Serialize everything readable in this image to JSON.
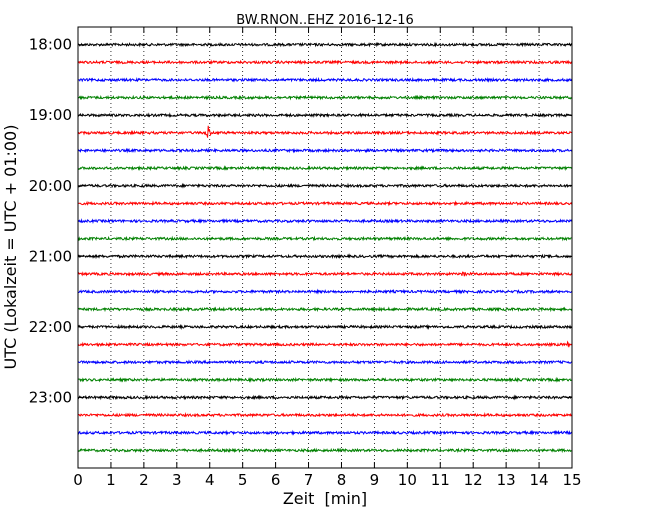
{
  "chart_data": {
    "type": "line",
    "title": "BW.RNON..EHZ 2016-12-16",
    "xlabel": "Zeit  [min]",
    "ylabel": "UTC (Lokalzeit = UTC + 01:00)",
    "xlim": [
      0,
      15
    ],
    "x_ticks": [
      "0",
      "1",
      "2",
      "3",
      "4",
      "5",
      "6",
      "7",
      "8",
      "9",
      "10",
      "11",
      "12",
      "13",
      "14",
      "15"
    ],
    "y_ticks": [
      "18:00",
      "19:00",
      "20:00",
      "21:00",
      "22:00",
      "23:00"
    ],
    "y_range": [
      "17:45",
      "00:00"
    ],
    "trace_interval_min": 15,
    "grid": "vertical dotted at each minute",
    "colors": [
      "#000000",
      "#ff0000",
      "#0000ff",
      "#008000"
    ],
    "traces": [
      {
        "start": "18:00",
        "color": "#000000"
      },
      {
        "start": "18:15",
        "color": "#ff0000"
      },
      {
        "start": "18:30",
        "color": "#0000ff"
      },
      {
        "start": "18:45",
        "color": "#008000"
      },
      {
        "start": "19:00",
        "color": "#000000"
      },
      {
        "start": "19:15",
        "color": "#ff0000",
        "events": [
          {
            "x": 3.95,
            "amp": 7
          }
        ]
      },
      {
        "start": "19:30",
        "color": "#0000ff"
      },
      {
        "start": "19:45",
        "color": "#008000"
      },
      {
        "start": "20:00",
        "color": "#000000"
      },
      {
        "start": "20:15",
        "color": "#ff0000"
      },
      {
        "start": "20:30",
        "color": "#0000ff"
      },
      {
        "start": "20:45",
        "color": "#008000"
      },
      {
        "start": "21:00",
        "color": "#000000"
      },
      {
        "start": "21:15",
        "color": "#ff0000",
        "events": [
          {
            "x": 11.7,
            "amp": 3
          }
        ]
      },
      {
        "start": "21:30",
        "color": "#0000ff"
      },
      {
        "start": "21:45",
        "color": "#008000"
      },
      {
        "start": "22:00",
        "color": "#000000"
      },
      {
        "start": "22:15",
        "color": "#ff0000",
        "events": [
          {
            "x": 14.9,
            "amp": 3
          }
        ]
      },
      {
        "start": "22:30",
        "color": "#0000ff"
      },
      {
        "start": "22:45",
        "color": "#008000"
      },
      {
        "start": "23:00",
        "color": "#000000"
      },
      {
        "start": "23:15",
        "color": "#ff0000"
      },
      {
        "start": "23:30",
        "color": "#0000ff"
      },
      {
        "start": "23:45",
        "color": "#008000"
      }
    ]
  }
}
